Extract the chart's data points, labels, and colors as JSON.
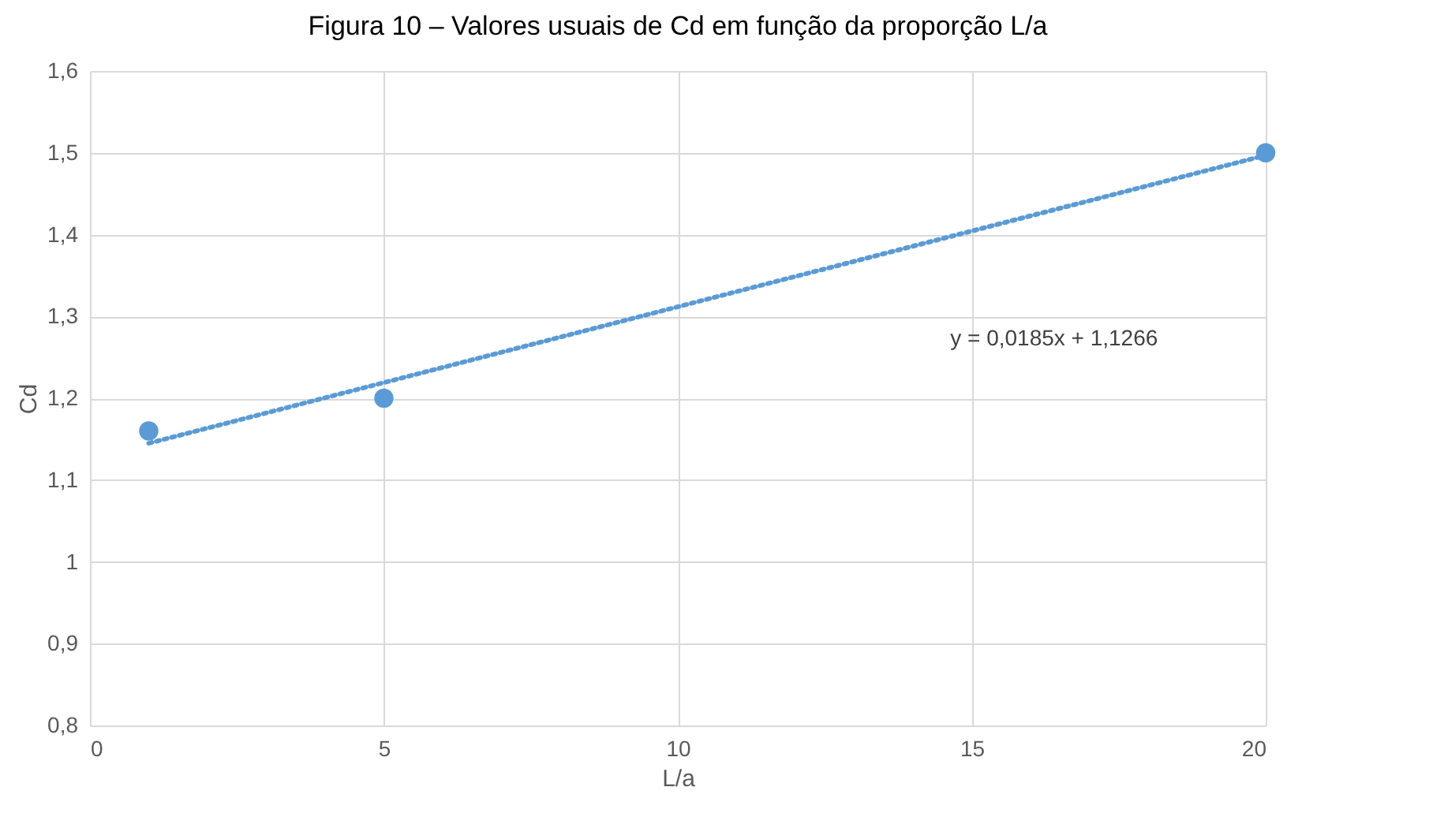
{
  "chart_data": {
    "type": "scatter",
    "title": "Figura 10 – Valores usuais de Cd em função da proporção L/a",
    "xlabel": "L/a",
    "ylabel": "Cd",
    "annotations": [
      "y = 0,0185x + 1,1266"
    ],
    "x": [
      1,
      5,
      20
    ],
    "series": [
      {
        "color": "#5b9bd5",
        "marker": "circle",
        "values": [
          1.16,
          1.2,
          1.5
        ]
      },
      {
        "type": "line",
        "color": "#5b9bd5",
        "line_style": "dotted",
        "marker": "none",
        "x": [
          1,
          20
        ],
        "values": [
          1.145,
          1.497
        ]
      }
    ],
    "xlim": [
      0,
      20
    ],
    "xticks": [
      0,
      5,
      10,
      15,
      20
    ],
    "ylim": [
      0.8,
      1.6
    ],
    "yticks": [
      {
        "value": 0.8,
        "label": "0,8"
      },
      {
        "value": 0.9,
        "label": "0,9"
      },
      {
        "value": 1,
        "label": "1"
      },
      {
        "value": 1.1,
        "label": "1,1"
      },
      {
        "value": 1.2,
        "label": "1,2"
      },
      {
        "value": 1.3,
        "label": "1,3"
      },
      {
        "value": 1.4,
        "label": "1,4"
      },
      {
        "value": 1.5,
        "label": "1,5"
      },
      {
        "value": 1.6,
        "label": "1,6"
      }
    ],
    "grid": true
  }
}
